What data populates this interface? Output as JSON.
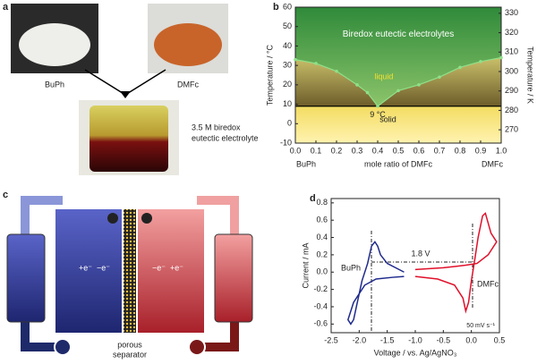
{
  "panel_labels": [
    "a",
    "b",
    "c",
    "d"
  ],
  "photos": {
    "left_label": "BuPh",
    "right_label": "DMFc",
    "product_label": [
      "3.5 M biredox",
      "eutectic electrolyte"
    ]
  },
  "schematic": {
    "separator_label": [
      "porous",
      "separator"
    ],
    "left_reaction": [
      "+e⁻",
      "−e⁻"
    ],
    "right_reaction": [
      "−e⁻",
      "+e⁻"
    ]
  },
  "chart_data": [
    {
      "type": "line",
      "xlabel": "mole ratio of DMFc",
      "x_end_labels": [
        "BuPh",
        "DMFc"
      ],
      "ylabel": "Temperature / °C",
      "y2label": "Temperature / K",
      "region_labels": {
        "top": "Biredox eutectic electrolytes",
        "liquid": "liquid",
        "solid": "solid"
      },
      "eutectic": {
        "value": 9,
        "label": "9 °C"
      },
      "xlim": [
        0,
        1
      ],
      "xticks": [
        {
          "value": 0,
          "label": "0.0"
        },
        0.1,
        0.2,
        0.3,
        0.4,
        0.5,
        0.6,
        0.7,
        0.8,
        0.9,
        {
          "value": 1,
          "label": "1.0"
        }
      ],
      "ylim": [
        -10,
        60
      ],
      "yticks": [
        -10,
        0,
        10,
        20,
        30,
        40,
        50,
        60
      ],
      "y2lim": [
        263.15,
        333.15
      ],
      "y2ticks": [
        270,
        280,
        290,
        300,
        310,
        320,
        330
      ],
      "x": [
        0,
        0.1,
        0.2,
        0.3,
        0.35,
        0.4,
        0.5,
        0.6,
        0.7,
        0.8,
        0.9,
        1
      ],
      "series": [
        {
          "name": "liquidus",
          "color": "#8fe08a",
          "values": [
            33,
            31,
            27,
            20,
            16,
            9,
            17,
            20,
            24,
            29,
            32,
            34
          ]
        }
      ]
    },
    {
      "type": "line",
      "xlabel": "Voltage / vs. Ag/AgNO₃",
      "ylabel": "Current / mA",
      "annotations": {
        "gap": "1.8 V",
        "left": "BuPh",
        "right": "DMFc",
        "rate": "50 mV s⁻¹"
      },
      "xlim": [
        -2.5,
        0.5
      ],
      "xticks": [
        -2.5,
        {
          "value": -2,
          "label": "-2.0"
        },
        -1.5,
        {
          "value": -1,
          "label": "-1.0"
        },
        -0.5,
        {
          "value": 0,
          "label": "0.0"
        },
        0.5
      ],
      "ylim": [
        -0.7,
        0.85
      ],
      "yticks": [
        -0.6,
        -0.4,
        -0.2,
        {
          "value": 0,
          "label": "0.0"
        },
        0.2,
        0.4,
        0.6,
        0.8
      ],
      "series": [
        {
          "name": "BuPh",
          "color": "#1f2a8c",
          "x": [
            -1.2,
            -1.5,
            -1.62,
            -1.67,
            -1.72,
            -1.78,
            -1.85,
            -1.95,
            -2.05,
            -2.1,
            -2.15,
            -2.2,
            -2.1,
            -1.9,
            -1.7,
            -1.4,
            -1.2
          ],
          "values": [
            0.0,
            0.1,
            0.2,
            0.3,
            0.35,
            0.3,
            0.1,
            -0.1,
            -0.4,
            -0.55,
            -0.6,
            -0.55,
            -0.35,
            -0.15,
            -0.08,
            -0.06,
            -0.05
          ]
        },
        {
          "name": "DMFc",
          "color": "#e0102a",
          "x": [
            -1.0,
            -0.6,
            -0.3,
            -0.15,
            -0.1,
            -0.05,
            0.0,
            0.05,
            0.12,
            0.2,
            0.25,
            0.35,
            0.45,
            0.3,
            0.1,
            -0.1,
            -0.5,
            -1.0
          ],
          "values": [
            -0.05,
            -0.08,
            -0.15,
            -0.3,
            -0.45,
            -0.35,
            -0.1,
            0.1,
            0.4,
            0.65,
            0.68,
            0.45,
            0.35,
            0.2,
            0.1,
            0.08,
            0.05,
            0.03
          ]
        }
      ]
    }
  ]
}
